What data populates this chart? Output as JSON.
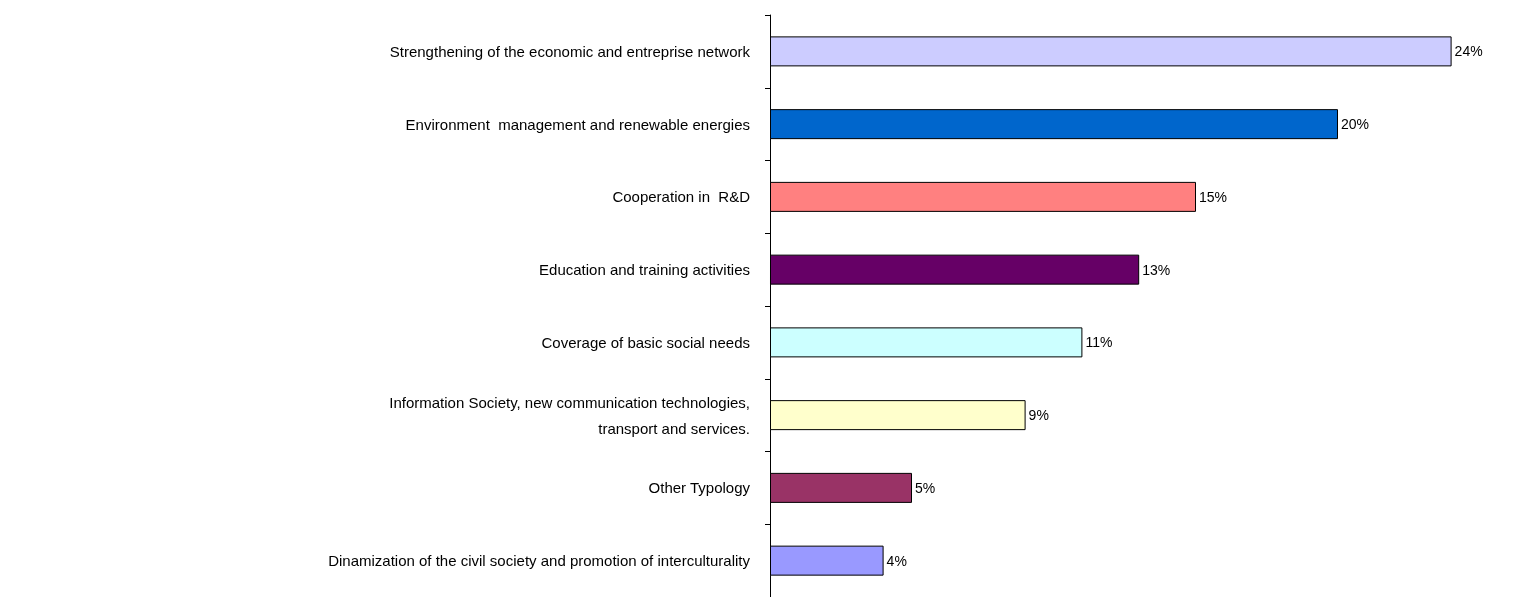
{
  "chart_data": {
    "type": "bar",
    "orientation": "horizontal",
    "categories": [
      "Strengthening of the economic and entreprise network",
      "Environment  management and renewable energies",
      "Cooperation in  R&D",
      "Education and training activities",
      "Coverage of basic social needs",
      "Information Society, new communication technologies,\ntransport and services.",
      "Other Typology",
      "Dinamization of the civil society and promotion of interculturality"
    ],
    "values": [
      24,
      20,
      15,
      13,
      11,
      9,
      5,
      4
    ],
    "colors": [
      "#ccccff",
      "#0066cc",
      "#ff8080",
      "#660066",
      "#ccffff",
      "#ffffcc",
      "#993366",
      "#9999ff"
    ],
    "value_labels": [
      "24%",
      "20%",
      "15%",
      "13%",
      "11%",
      "9%",
      "5%",
      "4%"
    ]
  }
}
